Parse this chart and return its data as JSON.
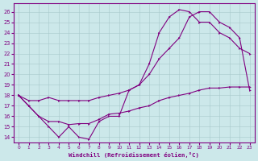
{
  "xlabel": "Windchill (Refroidissement éolien,°C)",
  "background_color": "#cce8ea",
  "line_color": "#800080",
  "xlim": [
    -0.5,
    23.5
  ],
  "ylim": [
    13.5,
    26.8
  ],
  "xticks": [
    0,
    1,
    2,
    3,
    4,
    5,
    6,
    7,
    8,
    9,
    10,
    11,
    12,
    13,
    14,
    15,
    16,
    17,
    18,
    19,
    20,
    21,
    22,
    23
  ],
  "yticks": [
    14,
    15,
    16,
    17,
    18,
    19,
    20,
    21,
    22,
    23,
    24,
    25,
    26
  ],
  "line1_x": [
    0,
    1,
    2,
    3,
    4,
    5,
    6,
    7,
    8,
    9,
    10,
    11,
    12,
    13,
    14,
    15,
    16,
    17,
    18,
    19,
    20,
    21,
    22,
    23
  ],
  "line1_y": [
    18,
    17,
    16,
    15,
    14,
    15,
    14,
    13.8,
    15.5,
    16,
    16,
    18.5,
    19,
    21,
    24,
    25.5,
    26.2,
    26,
    25,
    25,
    24,
    23.5,
    22.5,
    22
  ],
  "line2_x": [
    0,
    1,
    2,
    3,
    4,
    5,
    6,
    7,
    8,
    9,
    10,
    11,
    12,
    13,
    14,
    15,
    16,
    17,
    18,
    19,
    20,
    21,
    22,
    23
  ],
  "line2_y": [
    18,
    17.5,
    17.5,
    17.8,
    17.5,
    17.5,
    17.5,
    17.5,
    17.8,
    18,
    18.2,
    18.5,
    19,
    20,
    21.5,
    22.5,
    23.5,
    25.5,
    26,
    26,
    25,
    24.5,
    23.5,
    18.5
  ],
  "line3_x": [
    0,
    1,
    2,
    3,
    4,
    5,
    6,
    7,
    8,
    9,
    10,
    11,
    12,
    13,
    14,
    15,
    16,
    17,
    18,
    19,
    20,
    21,
    22,
    23
  ],
  "line3_y": [
    18,
    17,
    16,
    15.5,
    15.5,
    15.2,
    15.3,
    15.3,
    15.7,
    16.2,
    16.3,
    16.5,
    16.8,
    17,
    17.5,
    17.8,
    18,
    18.2,
    18.5,
    18.7,
    18.7,
    18.8,
    18.8,
    18.8
  ]
}
